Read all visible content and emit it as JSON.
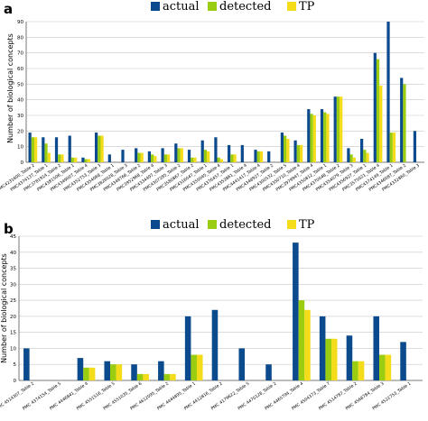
{
  "colors": {
    "actual": "#0b4a8c",
    "detected": "#9acd10",
    "TP": "#f5dc1a"
  },
  "chart_data": [
    {
      "panel_label": "a",
      "type": "bar",
      "ylabel": "Number of biological concepts",
      "ylim": [
        0,
        90
      ],
      "yticks": [
        0,
        10,
        20,
        30,
        40,
        50,
        60,
        70,
        80,
        90
      ],
      "grid": true,
      "legend": [
        "actual",
        "detected",
        "TP"
      ],
      "legend_position": "top-right",
      "categories": [
        "PMC4231600_Table 2",
        "PMC4374137_Table 1",
        "PMC3781914_Table 2",
        "PMC4381506_Table 1",
        "PMC4349007_Table 4",
        "PMC4352753_Table 3",
        "PMC4354068_Table 1",
        "PMC3826028_Table 3",
        "PMC4349766_Table 2",
        "PMC3952968_Table 4",
        "PMC4334497_Table 3",
        "PMC4307285_Table 2",
        "PMC3580867_Table 2",
        "PMC4316047_Table 1",
        "PMC4355045_Table 4",
        "PMC4376457_Table 1",
        "PMC4353861_Table 4",
        "PMC4441417_Table 4",
        "PMC4348927_Table 2",
        "PMC4300532_Table 5",
        "PMC4350710_Table 4",
        "PMC3979947_Table 4",
        "PMC4350812_Table 1",
        "PMC4370048_Table 2",
        "PMC4354079_Table 3",
        "PMC4356927_Table 1",
        "PMC3575021_Table 4",
        "PMC4374149_Table 1",
        "PMC4346087_Table 2",
        "PMC4332860_Table 3"
      ],
      "series": [
        {
          "name": "actual",
          "values": [
            19,
            16,
            16,
            17,
            3,
            19,
            5,
            8,
            9,
            7,
            9,
            12,
            8,
            14,
            16,
            11,
            11,
            8,
            7,
            19,
            14,
            34,
            34,
            42,
            9,
            15,
            70,
            90,
            54,
            20
          ]
        },
        {
          "name": "detected",
          "values": [
            16,
            12,
            5,
            3,
            2,
            17,
            0,
            0,
            6,
            5,
            5,
            9,
            3,
            8,
            3,
            5,
            0,
            7,
            0,
            17,
            11,
            31,
            32,
            42,
            5,
            8,
            66,
            19,
            50,
            0
          ]
        },
        {
          "name": "TP",
          "values": [
            16,
            6,
            5,
            3,
            2,
            17,
            0,
            0,
            6,
            4,
            5,
            9,
            3,
            7,
            2,
            5,
            0,
            7,
            0,
            15,
            11,
            30,
            31,
            42,
            3,
            6,
            49,
            19,
            0,
            0
          ]
        }
      ]
    },
    {
      "panel_label": "b",
      "type": "bar",
      "ylabel": "Number of biological concepts",
      "ylim": [
        0,
        45
      ],
      "yticks": [
        0,
        5,
        10,
        15,
        20,
        25,
        30,
        35,
        40,
        45
      ],
      "grid": true,
      "legend": [
        "actual",
        "detected",
        "TP"
      ],
      "legend_position": "top-right",
      "categories": [
        "PMC 4514307_Table 2",
        "PMC 4374154_Table 5",
        "PMC 4446841_Table 4",
        "PMC 4551516_Table 5",
        "PMC 4551035_Table 6",
        "PMC 4612095_Table 2",
        "PMC 4444895_Table 1",
        "PMC 4412816_Table 2",
        "PMC 4179622_Table 5",
        "PMC 4470128_Table 2",
        "PMC 4465794_Table 4",
        "PMC 4504373_Table 7",
        "PMC 4514787_Table 2",
        "PMC 4568784_Table 3",
        "PMC 4522753_Table 1"
      ],
      "series": [
        {
          "name": "actual",
          "values": [
            10,
            0,
            7,
            6,
            5,
            6,
            20,
            22,
            10,
            5,
            43,
            20,
            14,
            20,
            12
          ]
        },
        {
          "name": "detected",
          "values": [
            0,
            0,
            4,
            5,
            2,
            2,
            8,
            0,
            0,
            0,
            25,
            13,
            6,
            8,
            0
          ]
        },
        {
          "name": "TP",
          "values": [
            0,
            0,
            4,
            5,
            2,
            2,
            8,
            0,
            0,
            0,
            22,
            13,
            6,
            8,
            0
          ]
        }
      ]
    }
  ]
}
